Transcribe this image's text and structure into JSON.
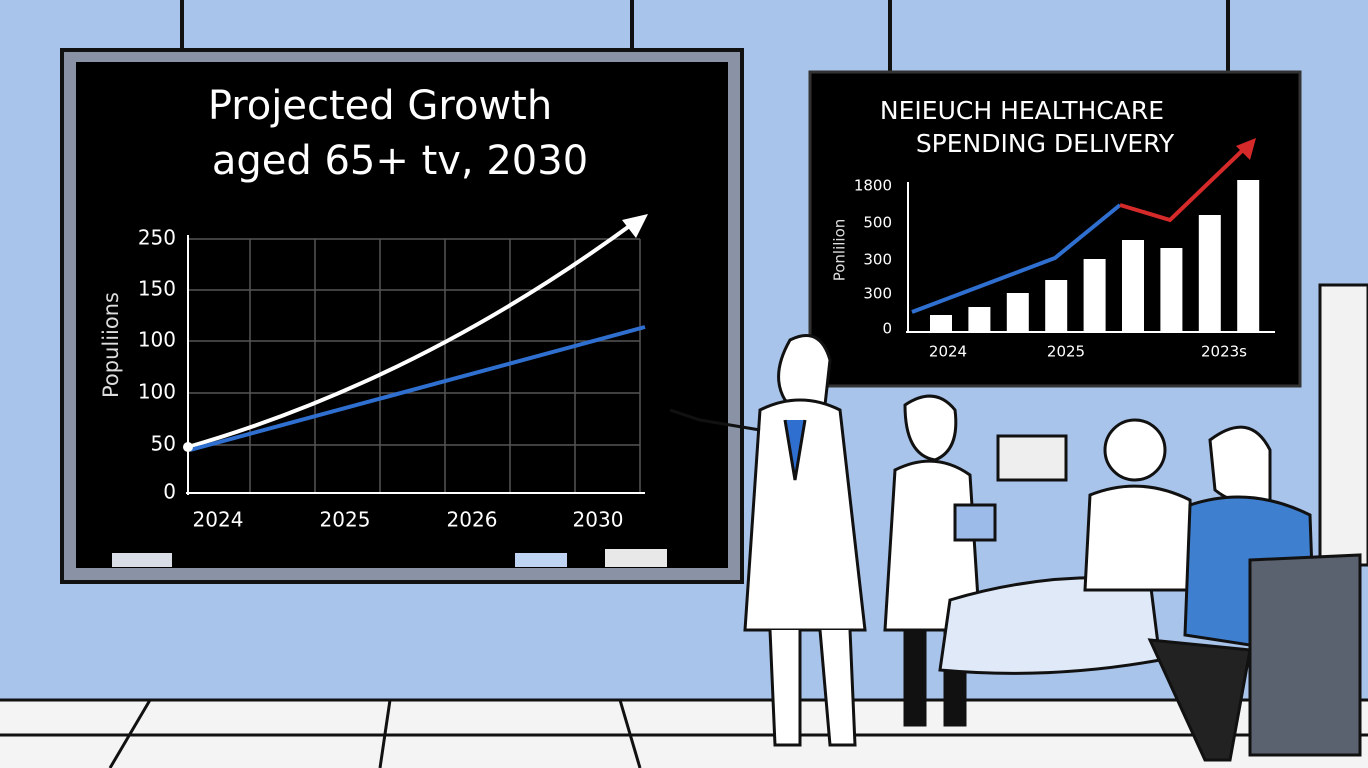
{
  "left_board": {
    "title_lines": [
      "Projected Growth",
      "aged 65+ tv, 2030"
    ],
    "y_axis_label": "Populiions",
    "y_tick_labels": [
      "0",
      "50",
      "100",
      "100",
      "150",
      "250"
    ],
    "x_tick_labels": [
      "2024",
      "2025",
      "2026",
      "2030"
    ]
  },
  "right_board": {
    "title_lines": [
      "NEIEUCH HEALTHCARE",
      "SPENDING DELIVERY"
    ],
    "y_axis_label": "Ponlilion",
    "y_tick_labels": [
      "1800",
      "500",
      "300",
      "300",
      "0"
    ],
    "x_tick_labels": [
      "2024",
      "2025",
      "2023s"
    ]
  }
}
